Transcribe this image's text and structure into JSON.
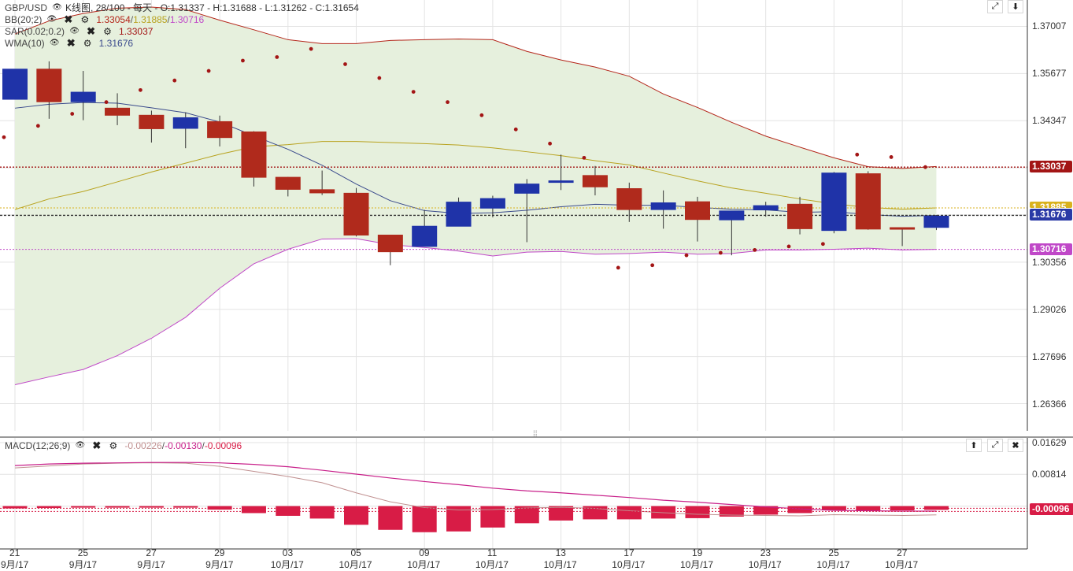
{
  "header": {
    "symbol": "GBP/USD",
    "chart_info": "K线图, 28/100 - 每天 - O:1.31337 - H:1.31688 - L:1.31262 - C:1.31654"
  },
  "indicators": [
    {
      "label": "BB(20;2)",
      "values": [
        {
          "text": "1.33054",
          "color": "#b4261a"
        },
        {
          "text": "/",
          "color": "#555555"
        },
        {
          "text": "1.31885",
          "color": "#b8a21e"
        },
        {
          "text": "/",
          "color": "#555555"
        },
        {
          "text": "1.30716",
          "color": "#c048c8"
        }
      ]
    },
    {
      "label": "SAR(0.02;0.2)",
      "values": [
        {
          "text": "1.33037",
          "color": "#a31515"
        }
      ]
    },
    {
      "label": "WMA(10)",
      "values": [
        {
          "text": "1.31676",
          "color": "#3a4a8c"
        }
      ]
    }
  ],
  "macd_header": {
    "label": "MACD(12;26;9)",
    "values": [
      {
        "text": "-0.00226",
        "color": "#c09090"
      },
      {
        "text": "/",
        "color": "#555555"
      },
      {
        "text": "-0.00130",
        "color": "#c8208a"
      },
      {
        "text": "/",
        "color": "#555555"
      },
      {
        "text": "-0.00096",
        "color": "#d81c46"
      }
    ]
  },
  "icons": {
    "eye": "eye-icon",
    "close": "close-icon",
    "settings": "gear-icon",
    "expand": "expand-icon",
    "collapse": "arrow-down-icon",
    "up": "arrow-up-icon"
  },
  "colors": {
    "bull": "#1f33a8",
    "bear": "#b02a1c",
    "band_fill": "#e6f0dd",
    "bb_upper": "#b4261a",
    "bb_mid": "#b8a21e",
    "bb_lower": "#c048c8",
    "wma": "#3a4a8c",
    "sar": "#a31515",
    "macd_bar": "#d81c46",
    "macd_line": "#c09090",
    "signal_line": "#c8208a"
  },
  "chart_data": {
    "type": "candlestick",
    "price_axis": {
      "min": 1.256,
      "max": 1.3775,
      "ticks": [
        "1.37007",
        "1.35677",
        "1.34347",
        "1.33037",
        "1.31885",
        "1.31676",
        "1.30716",
        "1.30356",
        "1.29026",
        "1.27696",
        "1.26366"
      ]
    },
    "macd_axis": {
      "min": -0.011,
      "max": 0.0175,
      "ticks": [
        "0.01629",
        "0.00814",
        "-0.00096"
      ]
    },
    "price_tags": [
      {
        "text": "1.33037",
        "value": 1.33037,
        "color": "#a31515"
      },
      {
        "text": "1.31885",
        "value": 1.31885,
        "color": "#d9b21d"
      },
      {
        "text": "1.31676",
        "value": 1.31676,
        "color": "#2a3aa6"
      },
      {
        "text": "1.30716",
        "value": 1.30716,
        "color": "#c048c8"
      }
    ],
    "x_labels": [
      {
        "day": "21",
        "month": "9月/17",
        "index": 0
      },
      {
        "day": "25",
        "month": "9月/17",
        "index": 2
      },
      {
        "day": "27",
        "month": "9月/17",
        "index": 4
      },
      {
        "day": "29",
        "month": "9月/17",
        "index": 6
      },
      {
        "day": "03",
        "month": "10月/17",
        "index": 8
      },
      {
        "day": "05",
        "month": "10月/17",
        "index": 10
      },
      {
        "day": "09",
        "month": "10月/17",
        "index": 12
      },
      {
        "day": "11",
        "month": "10月/17",
        "index": 14
      },
      {
        "day": "13",
        "month": "10月/17",
        "index": 16
      },
      {
        "day": "17",
        "month": "10月/17",
        "index": 18
      },
      {
        "day": "19",
        "month": "10月/17",
        "index": 20
      },
      {
        "day": "23",
        "month": "10月/17",
        "index": 22
      },
      {
        "day": "25",
        "month": "10月/17",
        "index": 24
      },
      {
        "day": "27",
        "month": "10月/17",
        "index": 26
      }
    ],
    "candles": [
      {
        "o": 1.3495,
        "h": 1.358,
        "l": 1.3495,
        "c": 1.358
      },
      {
        "o": 1.358,
        "h": 1.3602,
        "l": 1.344,
        "c": 1.3488
      },
      {
        "o": 1.3488,
        "h": 1.3575,
        "l": 1.3436,
        "c": 1.3515
      },
      {
        "o": 1.347,
        "h": 1.3512,
        "l": 1.3422,
        "c": 1.345
      },
      {
        "o": 1.345,
        "h": 1.3463,
        "l": 1.3373,
        "c": 1.3412
      },
      {
        "o": 1.3413,
        "h": 1.3458,
        "l": 1.3357,
        "c": 1.3443
      },
      {
        "o": 1.3432,
        "h": 1.3449,
        "l": 1.3362,
        "c": 1.3387
      },
      {
        "o": 1.3403,
        "h": 1.3405,
        "l": 1.3249,
        "c": 1.3275
      },
      {
        "o": 1.3275,
        "h": 1.3276,
        "l": 1.3221,
        "c": 1.3241
      },
      {
        "o": 1.324,
        "h": 1.3294,
        "l": 1.3225,
        "c": 1.3231
      },
      {
        "o": 1.323,
        "h": 1.3245,
        "l": 1.3108,
        "c": 1.3112
      },
      {
        "o": 1.3112,
        "h": 1.3112,
        "l": 1.3027,
        "c": 1.3065
      },
      {
        "o": 1.308,
        "h": 1.3183,
        "l": 1.308,
        "c": 1.3137
      },
      {
        "o": 1.3137,
        "h": 1.3218,
        "l": 1.3137,
        "c": 1.3205
      },
      {
        "o": 1.3188,
        "h": 1.3223,
        "l": 1.3162,
        "c": 1.3215
      },
      {
        "o": 1.323,
        "h": 1.327,
        "l": 1.3092,
        "c": 1.3256
      },
      {
        "o": 1.3262,
        "h": 1.3339,
        "l": 1.3239,
        "c": 1.3265
      },
      {
        "o": 1.328,
        "h": 1.3307,
        "l": 1.3224,
        "c": 1.3248
      },
      {
        "o": 1.3243,
        "h": 1.326,
        "l": 1.3149,
        "c": 1.3184
      },
      {
        "o": 1.3184,
        "h": 1.3238,
        "l": 1.313,
        "c": 1.3203
      },
      {
        "o": 1.3206,
        "h": 1.322,
        "l": 1.3094,
        "c": 1.3156
      },
      {
        "o": 1.3155,
        "h": 1.318,
        "l": 1.3055,
        "c": 1.318
      },
      {
        "o": 1.3183,
        "h": 1.3206,
        "l": 1.3164,
        "c": 1.3195
      },
      {
        "o": 1.3199,
        "h": 1.322,
        "l": 1.3114,
        "c": 1.313
      },
      {
        "o": 1.3125,
        "h": 1.329,
        "l": 1.3117,
        "c": 1.3287
      },
      {
        "o": 1.3285,
        "h": 1.3292,
        "l": 1.3127,
        "c": 1.3129
      },
      {
        "o": 1.3133,
        "h": 1.3133,
        "l": 1.3081,
        "c": 1.3129
      },
      {
        "o": 1.31337,
        "h": 1.31688,
        "l": 1.31262,
        "c": 1.31654
      }
    ],
    "bb_upper": [
      1.3679,
      1.3716,
      1.3737,
      1.3752,
      1.3755,
      1.3748,
      1.3718,
      1.3691,
      1.3663,
      1.3652,
      1.3652,
      1.3661,
      1.3663,
      1.3665,
      1.3663,
      1.363,
      1.3606,
      1.3586,
      1.356,
      1.351,
      1.3472,
      1.343,
      1.3391,
      1.336,
      1.333,
      1.3305,
      1.33,
      1.33054
    ],
    "bb_mid": [
      1.3184,
      1.3214,
      1.3235,
      1.3262,
      1.329,
      1.3315,
      1.334,
      1.3361,
      1.3367,
      1.3376,
      1.3376,
      1.3373,
      1.337,
      1.3366,
      1.3358,
      1.3347,
      1.3336,
      1.3322,
      1.331,
      1.3287,
      1.3265,
      1.3245,
      1.323,
      1.3214,
      1.32,
      1.319,
      1.3185,
      1.31885
    ],
    "bb_lower": [
      1.269,
      1.2712,
      1.2733,
      1.2772,
      1.2821,
      1.288,
      1.2962,
      1.3031,
      1.3072,
      1.3101,
      1.3102,
      1.3085,
      1.3077,
      1.3067,
      1.3053,
      1.3064,
      1.3066,
      1.3058,
      1.306,
      1.3064,
      1.3058,
      1.306,
      1.307,
      1.307,
      1.3072,
      1.3075,
      1.307,
      1.30716
    ],
    "wma": [
      1.347,
      1.3481,
      1.3486,
      1.3484,
      1.3471,
      1.3457,
      1.3431,
      1.3392,
      1.3354,
      1.3309,
      1.3256,
      1.3209,
      1.3181,
      1.3173,
      1.3175,
      1.3182,
      1.3192,
      1.3199,
      1.3196,
      1.3196,
      1.319,
      1.3185,
      1.3183,
      1.3176,
      1.3178,
      1.317,
      1.3165,
      1.31676
    ],
    "sar": [
      1.3388,
      1.342,
      1.3454,
      1.3487,
      1.3521,
      1.3548,
      1.3575,
      1.3604,
      1.3614,
      1.3637,
      1.3594,
      1.3555,
      1.3516,
      1.3487,
      1.345,
      1.341,
      1.337,
      1.333,
      1.302,
      1.3027,
      1.3055,
      1.3062,
      1.307,
      1.308,
      1.3087,
      1.3339,
      1.3332,
      1.33037
    ],
    "macd": [
      0.0098,
      0.0103,
      0.0108,
      0.011,
      0.0111,
      0.011,
      0.0102,
      0.0089,
      0.0076,
      0.006,
      0.0034,
      0.0011,
      -0.0004,
      -0.001,
      -0.0009,
      -0.0005,
      -0.0003,
      -0.0006,
      -0.0012,
      -0.0017,
      -0.0021,
      -0.0023,
      -0.0024,
      -0.0025,
      -0.0022,
      -0.0023,
      -0.0024,
      -0.00226
    ],
    "signal": [
      0.0104,
      0.0108,
      0.011,
      0.0111,
      0.0112,
      0.0112,
      0.0111,
      0.0107,
      0.0101,
      0.0092,
      0.0082,
      0.0072,
      0.0063,
      0.0055,
      0.0046,
      0.0039,
      0.0034,
      0.0028,
      0.0022,
      0.0015,
      0.001,
      0.0004,
      -0.0002,
      -0.0007,
      -0.0011,
      -0.0012,
      -0.0013,
      -0.0013
    ],
    "histogram": [
      -0.0006,
      -0.0005,
      -0.0002,
      -0.0001,
      -0.0001,
      -0.0002,
      -0.0009,
      -0.0018,
      -0.0025,
      -0.0032,
      -0.0048,
      -0.0061,
      -0.0067,
      -0.0065,
      -0.0055,
      -0.0044,
      -0.0037,
      -0.0034,
      -0.0034,
      -0.0032,
      -0.0031,
      -0.0027,
      -0.0022,
      -0.0018,
      -0.0011,
      -0.0011,
      -0.0011,
      -0.00096
    ]
  }
}
